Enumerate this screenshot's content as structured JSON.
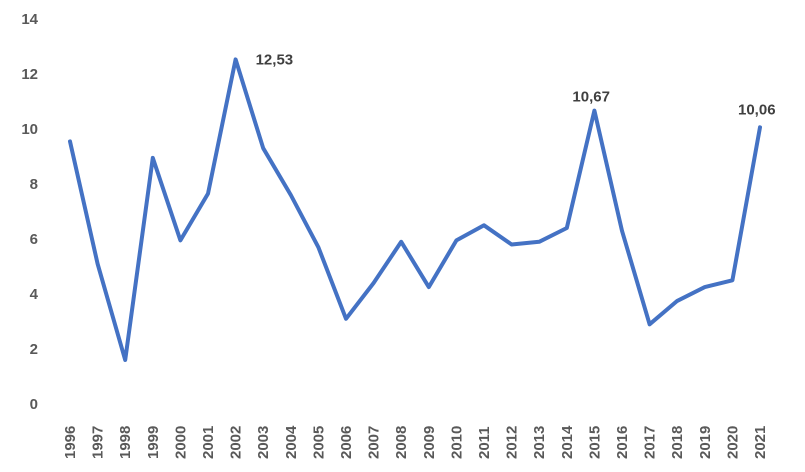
{
  "chart_data": {
    "type": "line",
    "title": "",
    "xlabel": "",
    "ylabel": "",
    "ylim": [
      0,
      14
    ],
    "yticks": [
      0,
      2,
      4,
      6,
      8,
      10,
      12,
      14
    ],
    "grid": false,
    "legend": "none",
    "categories": [
      "1996",
      "1997",
      "1998",
      "1999",
      "2000",
      "2001",
      "2002",
      "2003",
      "2004",
      "2005",
      "2006",
      "2007",
      "2008",
      "2009",
      "2010",
      "2011",
      "2012",
      "2013",
      "2014",
      "2015",
      "2016",
      "2017",
      "2018",
      "2019",
      "2020",
      "2021"
    ],
    "series": [
      {
        "color": "#4472C4",
        "values": [
          9.55,
          5.1,
          1.6,
          8.95,
          5.95,
          7.65,
          12.53,
          9.3,
          7.6,
          5.7,
          3.1,
          4.4,
          5.9,
          4.25,
          5.95,
          6.5,
          5.8,
          5.9,
          6.4,
          10.67,
          6.3,
          2.9,
          3.75,
          4.25,
          4.5,
          10.06
        ]
      }
    ],
    "annotations": [
      {
        "category": "2002",
        "text": "12,53"
      },
      {
        "category": "2015",
        "text": "10,67"
      },
      {
        "category": "2021",
        "text": "10,06"
      }
    ]
  }
}
